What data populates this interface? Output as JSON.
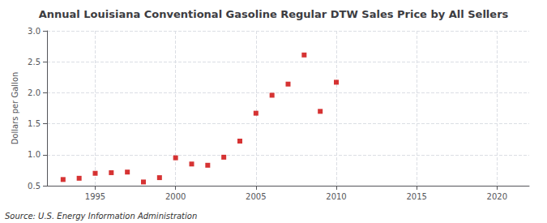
{
  "chart_data": {
    "type": "scatter",
    "title": "Annual Louisiana Conventional Gasoline Regular DTW Sales Price by All Sellers",
    "ylabel": "Dollars per Gallon",
    "annotations": [
      "Source: U.S. Energy Information Administration"
    ],
    "x": [
      1993,
      1994,
      1995,
      1996,
      1997,
      1998,
      1999,
      2000,
      2001,
      2002,
      2003,
      2004,
      2005,
      2006,
      2007,
      2008,
      2009,
      2010
    ],
    "values": [
      0.6,
      0.62,
      0.7,
      0.71,
      0.72,
      0.56,
      0.63,
      0.95,
      0.85,
      0.83,
      0.96,
      1.22,
      1.67,
      1.96,
      2.14,
      2.61,
      1.7,
      2.17
    ],
    "color": "#cc0000",
    "marker": "square",
    "xlim": [
      1992,
      2022
    ],
    "xticks": [
      1995,
      2000,
      2005,
      2010,
      2015,
      2020
    ],
    "ylim": [
      0.5,
      3.0
    ],
    "yticks": [
      0.5,
      {
        "value": 1.0,
        "label": "1.0"
      },
      1.5,
      {
        "value": 2.0,
        "label": "2.0"
      },
      2.5,
      {
        "value": 3.0,
        "label": "3.0"
      }
    ],
    "grid": true
  }
}
